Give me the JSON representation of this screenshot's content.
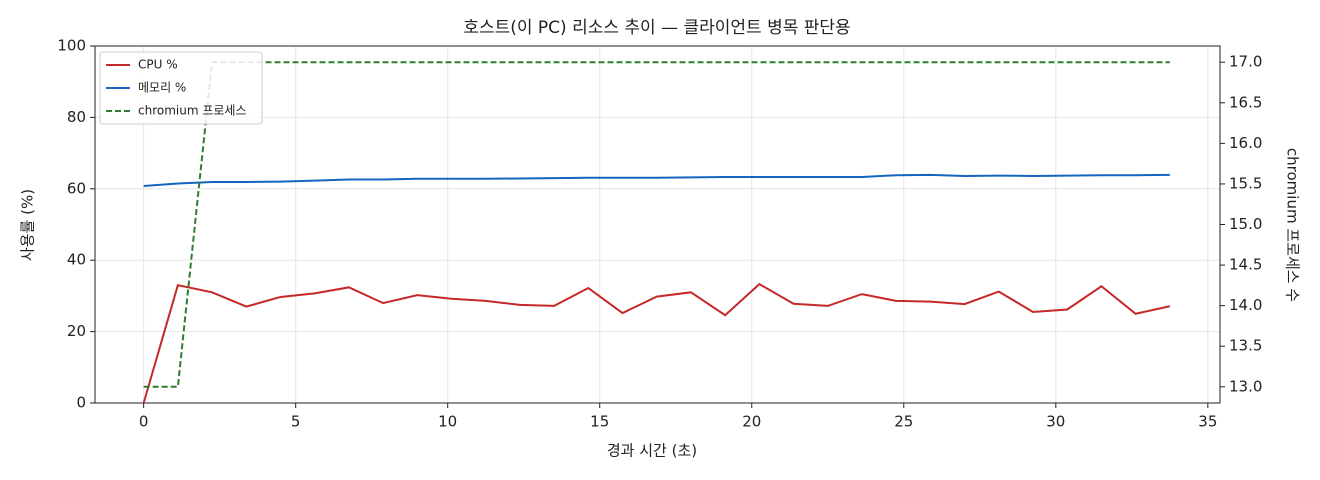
{
  "chart_data": {
    "type": "line",
    "title": "호스트(이 PC) 리소스 추이 — 클라이언트 병목 판단용",
    "xlabel": "경과 시간 (초)",
    "ylabel": "사용률 (%)",
    "y2label": "chromium 프로세스 수",
    "x": [
      0,
      1.125,
      2.25,
      3.375,
      4.5,
      5.625,
      6.75,
      7.875,
      9,
      10.125,
      11.25,
      12.375,
      13.5,
      14.625,
      15.75,
      16.875,
      18,
      19.125,
      20.25,
      21.375,
      22.5,
      23.625,
      24.75,
      25.875,
      27,
      28.125,
      29.25,
      30.375,
      31.5,
      32.625,
      33.75
    ],
    "series": [
      {
        "name": "CPU %",
        "color": "#c62828",
        "dash": false,
        "values": [
          0,
          33,
          31,
          27,
          29.7,
          30.7,
          32.4,
          28,
          30.2,
          29.2,
          28.6,
          27.5,
          27.2,
          32.2,
          25.2,
          29.8,
          31,
          24.6,
          33.3,
          27.8,
          27.2,
          30.5,
          28.6,
          28.4,
          27.7,
          31.2,
          25.5,
          26.2,
          32.7,
          25,
          27.1
        ]
      },
      {
        "name": "메모리 %",
        "color": "#1565c0",
        "dash": false,
        "values": [
          60.8,
          61.5,
          61.9,
          61.9,
          62,
          62.3,
          62.6,
          62.6,
          62.8,
          62.8,
          62.8,
          62.9,
          63,
          63.1,
          63.1,
          63.1,
          63.2,
          63.3,
          63.3,
          63.3,
          63.3,
          63.3,
          63.8,
          63.9,
          63.6,
          63.7,
          63.6,
          63.7,
          63.8,
          63.8,
          63.9
        ]
      },
      {
        "name": "chromium 프로세스",
        "color": "#2e7d32",
        "dash": true,
        "axis": "y2",
        "values": [
          13,
          13,
          17,
          17,
          17,
          17,
          17,
          17,
          17,
          17,
          17,
          17,
          17,
          17,
          17,
          17,
          17,
          17,
          17,
          17,
          17,
          17,
          17,
          17,
          17,
          17,
          17,
          17,
          17,
          17,
          17
        ]
      }
    ],
    "xlim": [
      -1.6,
      35.4
    ],
    "xticks": [
      0,
      5,
      10,
      15,
      20,
      25,
      30,
      35
    ],
    "ylim": [
      0,
      100
    ],
    "yticks": [
      0,
      20,
      40,
      60,
      80,
      100
    ],
    "y2lim": [
      12.8,
      17.2
    ],
    "y2ticks": [
      {
        "value": 13,
        "label": "13.0"
      },
      13.5,
      {
        "value": 14,
        "label": "14.0"
      },
      14.5,
      {
        "value": 15,
        "label": "15.0"
      },
      15.5,
      {
        "value": 16,
        "label": "16.0"
      },
      16.5,
      {
        "value": 17,
        "label": "17.0"
      }
    ],
    "grid": true,
    "legend": "upper-left"
  }
}
